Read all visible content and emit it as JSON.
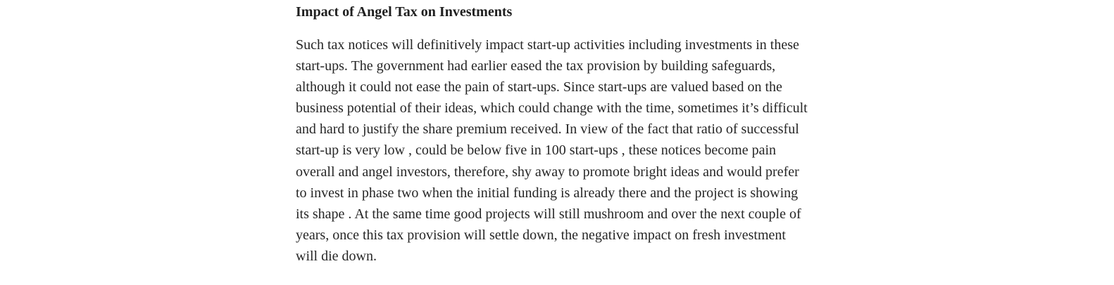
{
  "article": {
    "heading": "Impact of Angel Tax on Investments",
    "paragraph": "Such tax notices will definitively impact start-up activities including investments in these start-ups. The government had earlier eased the tax provision by building safeguards, although it could not ease the pain of start-ups. Since start-ups are valued based on the business potential of their ideas, which could change with the time, sometimes it’s difficult and hard to justify the share premium received. In view of the fact that ratio of successful start-up is very low , could be below five in 100 start-ups , these notices become pain overall and angel investors, therefore, shy away to promote bright ideas and would prefer to invest in phase two when the initial funding is already there and the project is showing its shape . At the same time good projects will still mushroom and over the next couple of years, once this tax provision will settle down, the negative impact on fresh investment will die down."
  }
}
